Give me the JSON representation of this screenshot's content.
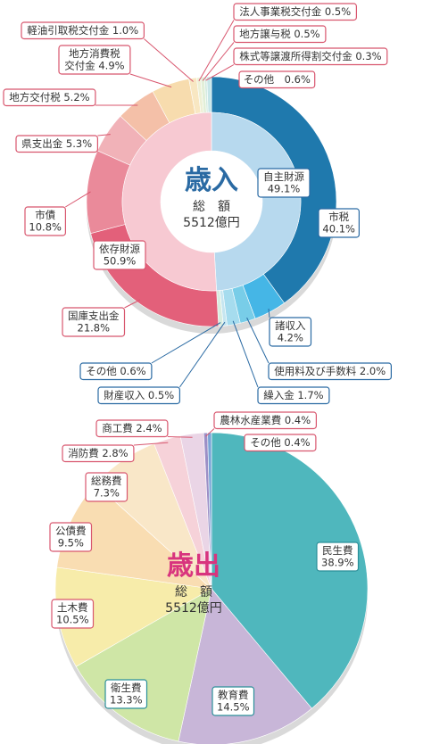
{
  "chart_data": [
    {
      "type": "pie",
      "title": "歳入",
      "total_label": "総　額",
      "total_value": "5512億円",
      "colors": {
        "accent": "#2a6aa3",
        "title": "#2a6aa3"
      },
      "outer_ring": [
        {
          "label": "市税",
          "value": 40.1,
          "value_text": "40.1%",
          "color": "#1f79ad",
          "label_lines": [
            "市税",
            "40.1%"
          ]
        },
        {
          "label": "諸収入",
          "value": 4.2,
          "value_text": "4.2%",
          "color": "#45b6e6",
          "label_lines": [
            "諸収入",
            "4.2%"
          ]
        },
        {
          "label": "使用料及び手数料",
          "value": 2.0,
          "value_text": "2.0%",
          "color": "#78cde8",
          "label_lines": [
            "使用料及び手数料 2.0%"
          ]
        },
        {
          "label": "繰入金",
          "value": 1.7,
          "value_text": "1.7%",
          "color": "#a6dcee",
          "label_lines": [
            "繰入金 1.7%"
          ]
        },
        {
          "label": "財産収入",
          "value": 0.5,
          "value_text": "0.5%",
          "color": "#c6e6f0",
          "label_lines": [
            "財産収入 0.5%"
          ]
        },
        {
          "label": "その他",
          "value": 0.6,
          "value_text": "0.6%",
          "color": "#d7ecdf",
          "label_lines": [
            "その他 0.6%"
          ]
        },
        {
          "label": "国庫支出金",
          "value": 21.8,
          "value_text": "21.8%",
          "color": "#e3607a",
          "label_lines": [
            "国庫支出金",
            "21.8%"
          ]
        },
        {
          "label": "市債",
          "value": 10.8,
          "value_text": "10.8%",
          "color": "#ea8a9a",
          "label_lines": [
            "市債",
            "10.8%"
          ]
        },
        {
          "label": "県支出金",
          "value": 5.3,
          "value_text": "5.3%",
          "color": "#f1b2b8",
          "label_lines": [
            "県支出金 5.3%"
          ]
        },
        {
          "label": "地方交付税",
          "value": 5.2,
          "value_text": "5.2%",
          "color": "#f4c0a8",
          "label_lines": [
            "地方交付税 5.2%"
          ]
        },
        {
          "label": "地方消費税交付金",
          "value": 4.9,
          "value_text": "4.9%",
          "color": "#f7dcae",
          "label_lines": [
            "地方消費税",
            "交付金 4.9%"
          ]
        },
        {
          "label": "軽油引取税交付金",
          "value": 1.0,
          "value_text": "1.0%",
          "color": "#f8e7c2",
          "label_lines": [
            "軽油引取税交付金 1.0%"
          ]
        },
        {
          "label": "法人事業税交付金",
          "value": 0.5,
          "value_text": "0.5%",
          "color": "#eef0d6",
          "label_lines": [
            "法人事業税交付金 0.5%"
          ]
        },
        {
          "label": "地方譲与税",
          "value": 0.5,
          "value_text": "0.5%",
          "color": "#e2efd8",
          "label_lines": [
            "地方譲与税 0.5%"
          ]
        },
        {
          "label": "株式等譲渡所得割交付金",
          "value": 0.3,
          "value_text": "0.3%",
          "color": "#d4ebe0",
          "label_lines": [
            "株式等譲渡所得割交付金 0.3%"
          ]
        },
        {
          "label": "その他",
          "value": 0.6,
          "value_text": "0.6%",
          "color": "#c8e6e8",
          "label_lines": [
            "その他　0.6%"
          ]
        }
      ],
      "inner_ring": [
        {
          "label": "自主財源",
          "value": 49.1,
          "value_text": "49.1%",
          "color": "#b7d9ee",
          "label_lines": [
            "自主財源",
            "49.1%"
          ]
        },
        {
          "label": "依存財源",
          "value": 50.9,
          "value_text": "50.9%",
          "color": "#f7c9d2",
          "label_lines": [
            "依存財源",
            "50.9%"
          ]
        }
      ]
    },
    {
      "type": "pie",
      "title": "歳出",
      "total_label": "総　額",
      "total_value": "5512億円",
      "colors": {
        "accent": "#d8347e",
        "title": "#d8347e"
      },
      "slices": [
        {
          "label": "民生費",
          "value": 38.9,
          "value_text": "38.9%",
          "color": "#4fb7bd",
          "label_lines": [
            "民生費",
            "38.9%"
          ]
        },
        {
          "label": "教育費",
          "value": 14.5,
          "value_text": "14.5%",
          "color": "#c8b6d8",
          "label_lines": [
            "教育費",
            "14.5%"
          ]
        },
        {
          "label": "衛生費",
          "value": 13.3,
          "value_text": "13.3%",
          "color": "#cfe6a6",
          "label_lines": [
            "衛生費",
            "13.3%"
          ]
        },
        {
          "label": "土木費",
          "value": 10.5,
          "value_text": "10.5%",
          "color": "#f7ecaa",
          "label_lines": [
            "土木費",
            "10.5%"
          ]
        },
        {
          "label": "公債費",
          "value": 9.5,
          "value_text": "9.5%",
          "color": "#f9ddb2",
          "label_lines": [
            "公債費",
            "9.5%"
          ]
        },
        {
          "label": "総務費",
          "value": 7.3,
          "value_text": "7.3%",
          "color": "#f9e7c8",
          "label_lines": [
            "総務費",
            "7.3%"
          ]
        },
        {
          "label": "消防費",
          "value": 2.8,
          "value_text": "2.8%",
          "color": "#f6d2d9",
          "label_lines": [
            "消防費 2.8%"
          ]
        },
        {
          "label": "商工費",
          "value": 2.4,
          "value_text": "2.4%",
          "color": "#ead5e6",
          "label_lines": [
            "商工費 2.4%"
          ]
        },
        {
          "label": "農林水産業費",
          "value": 0.4,
          "value_text": "0.4%",
          "color": "#9c8fc6",
          "label_lines": [
            "農林水産業費 0.4%"
          ]
        },
        {
          "label": "その他",
          "value": 0.4,
          "value_text": "0.4%",
          "color": "#7aa5d6",
          "label_lines": [
            "その他 0.4%"
          ]
        }
      ]
    }
  ]
}
